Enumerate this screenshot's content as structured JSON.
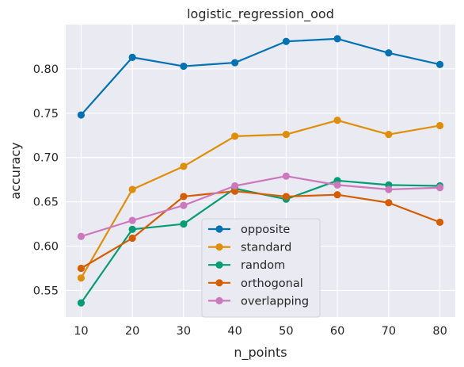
{
  "chart_data": {
    "type": "line",
    "title": "logistic_regression_ood",
    "xlabel": "n_points",
    "ylabel": "accuracy",
    "x": [
      10,
      20,
      30,
      40,
      50,
      60,
      70,
      80
    ],
    "xticks": [
      10,
      20,
      30,
      40,
      50,
      60,
      70,
      80
    ],
    "yticks": [
      0.55,
      0.6,
      0.65,
      0.7,
      0.75,
      0.8
    ],
    "ytick_labels": [
      "0.55",
      "0.60",
      "0.65",
      "0.70",
      "0.75",
      "0.80"
    ],
    "xlim": [
      7,
      83
    ],
    "ylim": [
      0.52,
      0.85
    ],
    "grid": true,
    "legend_position": "bottom-center",
    "series": [
      {
        "name": "opposite",
        "color": "#0173b2",
        "values": [
          0.748,
          0.813,
          0.803,
          0.807,
          0.831,
          0.834,
          0.818,
          0.805
        ]
      },
      {
        "name": "standard",
        "color": "#de8f05",
        "values": [
          0.564,
          0.664,
          0.69,
          0.724,
          0.726,
          0.742,
          0.726,
          0.736
        ]
      },
      {
        "name": "random",
        "color": "#029e73",
        "values": [
          0.536,
          0.619,
          0.625,
          0.665,
          0.653,
          0.674,
          0.669,
          0.668
        ]
      },
      {
        "name": "orthogonal",
        "color": "#d55e00",
        "values": [
          0.575,
          0.609,
          0.656,
          0.662,
          0.656,
          0.658,
          0.649,
          0.627
        ]
      },
      {
        "name": "overlapping",
        "color": "#cc78bc",
        "values": [
          0.611,
          0.629,
          0.646,
          0.668,
          0.679,
          0.669,
          0.664,
          0.666
        ]
      }
    ]
  }
}
